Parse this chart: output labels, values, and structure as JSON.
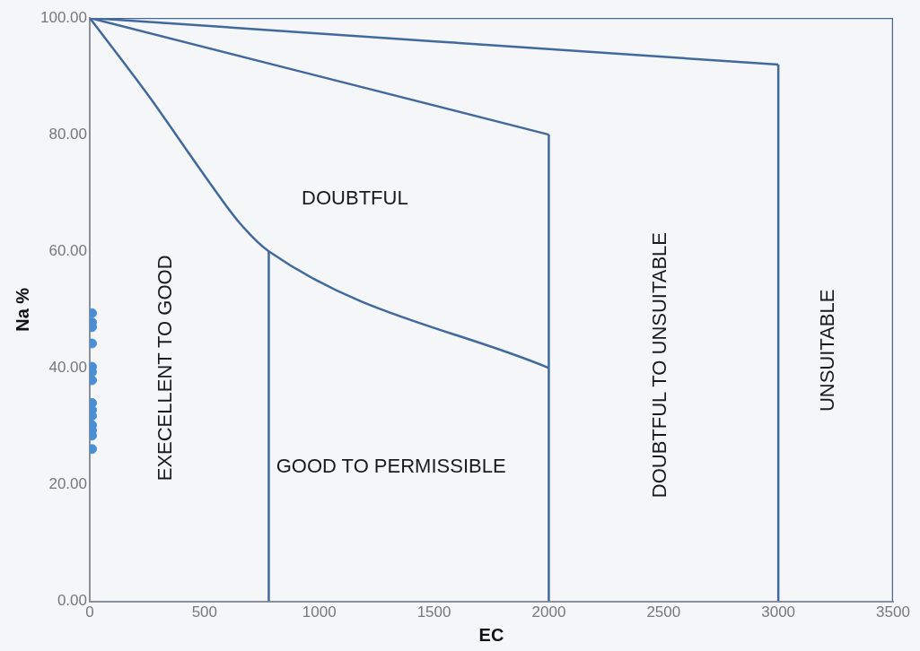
{
  "chart_data": {
    "type": "scatter",
    "xlabel": "EC",
    "ylabel": "Na %",
    "xlim": [
      0,
      3500
    ],
    "xticks": [
      0,
      500,
      1000,
      1500,
      2000,
      2500,
      3000,
      3500
    ],
    "ylim": [
      0,
      100
    ],
    "yticks": [
      {
        "value": 0,
        "label": "0.00"
      },
      {
        "value": 20,
        "label": "20.00"
      },
      {
        "value": 40,
        "label": "40.00"
      },
      {
        "value": 60,
        "label": "60.00"
      },
      {
        "value": 80,
        "label": "80.00"
      },
      {
        "value": 100,
        "label": "100.00"
      }
    ],
    "grid": false,
    "legend": false,
    "series": [
      {
        "marker": "circle",
        "color": "#4a8fd4",
        "x": [
          10,
          10,
          10,
          10,
          10,
          10,
          10,
          10,
          10,
          10,
          10,
          10,
          10,
          10
        ],
        "values": [
          49.4,
          47.8,
          47,
          44.2,
          40.2,
          39.3,
          37.9,
          34,
          32.8,
          31.8,
          30.2,
          29.3,
          28.4,
          26.1
        ]
      },
      {
        "type": "line",
        "color": "#41699c",
        "x": [
          0,
          250,
          500,
          650,
          780,
          2000
        ],
        "values": [
          100,
          87,
          73,
          65,
          60,
          40
        ]
      },
      {
        "type": "line",
        "color": "#41699c",
        "x": [
          0,
          2000
        ],
        "values": [
          100,
          80
        ]
      },
      {
        "type": "line",
        "color": "#41699c",
        "x": [
          0,
          3000
        ],
        "values": [
          100,
          92
        ]
      },
      {
        "type": "line",
        "color": "#41699c",
        "x": [
          0,
          3500,
          3500
        ],
        "values": [
          100,
          100,
          0
        ]
      },
      {
        "type": "line",
        "color": "#41699c",
        "x": [
          780,
          780
        ],
        "values": [
          0,
          60
        ]
      },
      {
        "type": "line",
        "color": "#41699c",
        "x": [
          2000,
          2000
        ],
        "values": [
          0,
          80
        ]
      },
      {
        "type": "line",
        "color": "#41699c",
        "x": [
          3000,
          3000
        ],
        "values": [
          0,
          92
        ]
      }
    ],
    "annotations": [
      "EXECELLENT TO GOOD",
      "DOUBTFUL",
      "GOOD TO PERMISSIBLE",
      "DOUBTFUL TO UNSUITABLE",
      "UNSUITABLE"
    ]
  }
}
